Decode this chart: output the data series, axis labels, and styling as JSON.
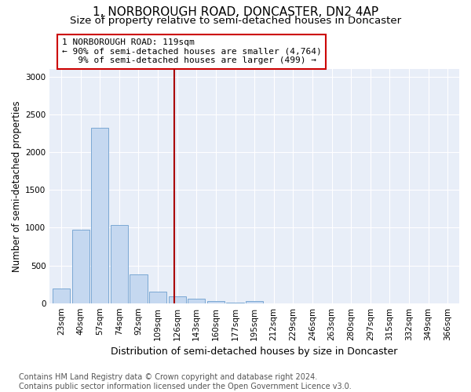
{
  "title": "1, NORBOROUGH ROAD, DONCASTER, DN2 4AP",
  "subtitle": "Size of property relative to semi-detached houses in Doncaster",
  "xlabel": "Distribution of semi-detached houses by size in Doncaster",
  "ylabel": "Number of semi-detached properties",
  "footnote": "Contains HM Land Registry data © Crown copyright and database right 2024.\nContains public sector information licensed under the Open Government Licence v3.0.",
  "categories": [
    "23sqm",
    "40sqm",
    "57sqm",
    "74sqm",
    "92sqm",
    "109sqm",
    "126sqm",
    "143sqm",
    "160sqm",
    "177sqm",
    "195sqm",
    "212sqm",
    "229sqm",
    "246sqm",
    "263sqm",
    "280sqm",
    "297sqm",
    "315sqm",
    "332sqm",
    "349sqm",
    "366sqm"
  ],
  "values": [
    190,
    970,
    2320,
    1040,
    380,
    155,
    95,
    55,
    25,
    5,
    30,
    0,
    0,
    0,
    0,
    0,
    0,
    0,
    0,
    0,
    0
  ],
  "bar_color": "#c5d8f0",
  "bar_edge_color": "#7ba8d4",
  "annotation_text": "1 NORBOROUGH ROAD: 119sqm\n← 90% of semi-detached houses are smaller (4,764)\n   9% of semi-detached houses are larger (499) →",
  "vline_color": "#aa0000",
  "annotation_box_color": "white",
  "annotation_box_edge": "#cc0000",
  "ylim": [
    0,
    3100
  ],
  "yticks": [
    0,
    500,
    1000,
    1500,
    2000,
    2500,
    3000
  ],
  "bg_color": "#e8eef8",
  "title_fontsize": 11,
  "subtitle_fontsize": 9.5,
  "xlabel_fontsize": 9,
  "ylabel_fontsize": 8.5,
  "tick_fontsize": 7.5,
  "annotation_fontsize": 8,
  "footnote_fontsize": 7
}
